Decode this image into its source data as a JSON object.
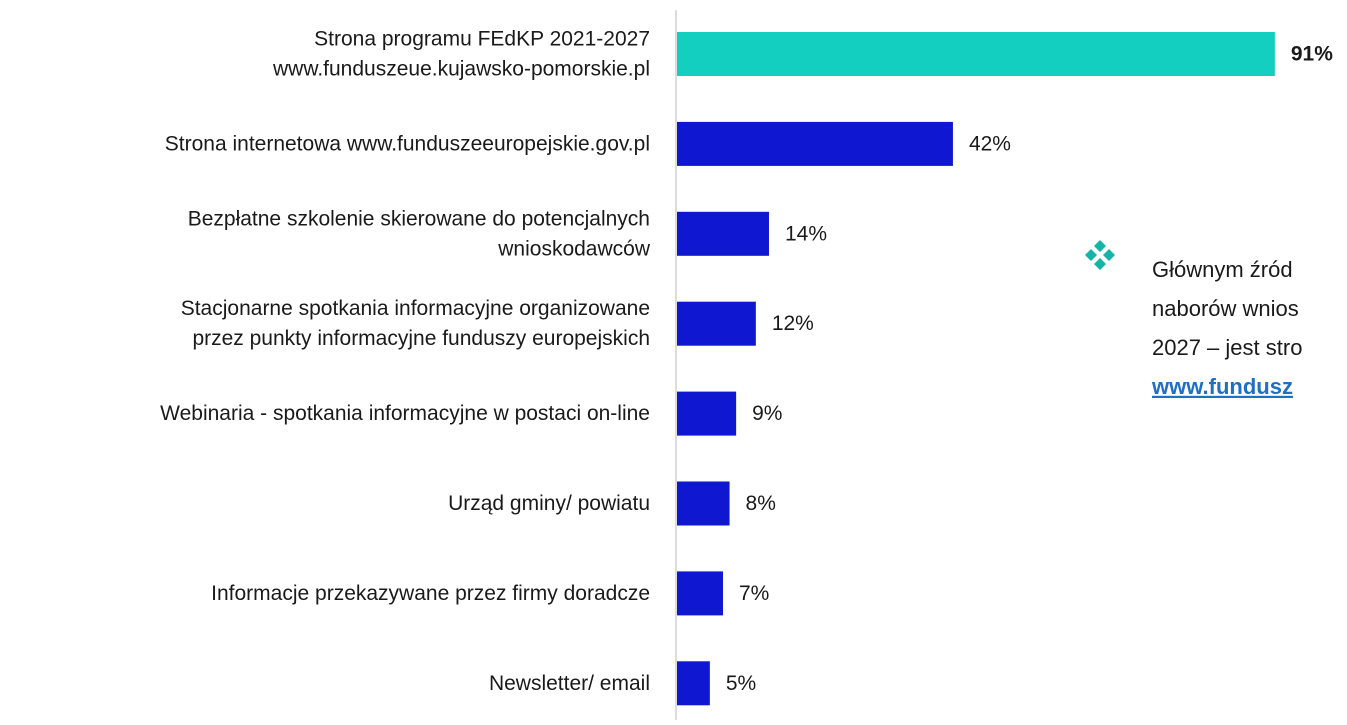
{
  "chart_data": {
    "type": "bar",
    "orientation": "horizontal",
    "categories": [
      [
        "Strona programu FEdKP 2021-2027",
        "www.funduszeue.kujawsko-pomorskie.pl"
      ],
      [
        "Strona internetowa www.funduszeeuropejskie.gov.pl"
      ],
      [
        "Bezpłatne szkolenie skierowane do potencjalnych",
        "wnioskodawców"
      ],
      [
        "Stacjonarne spotkania informacyjne organizowane",
        "przez punkty informacyjne funduszy europejskich"
      ],
      [
        "Webinaria - spotkania informacyjne w postaci on-line"
      ],
      [
        "Urząd gminy/ powiatu"
      ],
      [
        "Informacje przekazywane przez firmy doradcze"
      ],
      [
        "Newsletter/ email"
      ]
    ],
    "values": [
      91,
      42,
      14,
      12,
      9,
      8,
      7,
      5
    ],
    "value_labels": [
      "91%",
      "42%",
      "14%",
      "12%",
      "9%",
      "8%",
      "7%",
      "5%"
    ],
    "colors": [
      "#13cfc0",
      "#0f17d0",
      "#0f17d0",
      "#0f17d0",
      "#0f17d0",
      "#0f17d0",
      "#0f17d0",
      "#0f17d0"
    ],
    "bold_value_labels": [
      true,
      false,
      false,
      false,
      false,
      false,
      false,
      false
    ],
    "annotation": {
      "lines": [
        "Głównym źród",
        "naborów wnios",
        "2027 – jest stro"
      ],
      "link": "www.fundusz",
      "link_color": "#1f6fc5",
      "icon_color": "#13b5a8"
    }
  }
}
